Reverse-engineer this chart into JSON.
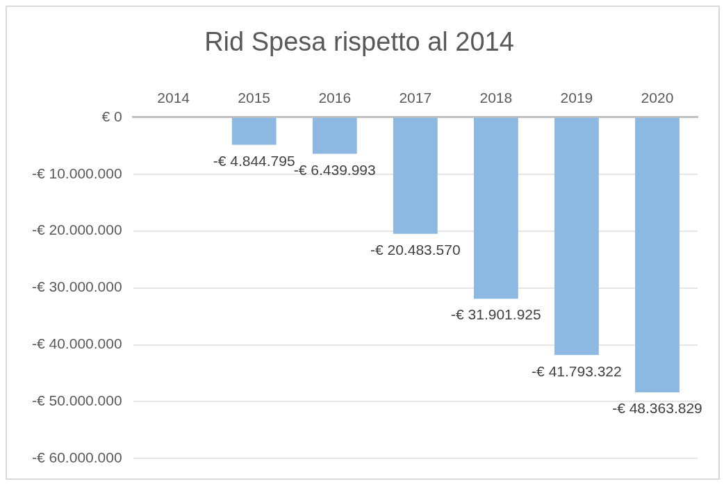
{
  "chart_data": {
    "type": "bar",
    "title": "Rid Spesa rispetto al 2014",
    "categories": [
      "2014",
      "2015",
      "2016",
      "2017",
      "2018",
      "2019",
      "2020"
    ],
    "values": [
      0,
      -4844795,
      -6439993,
      -20483570,
      -31901925,
      -41793322,
      -48363829
    ],
    "value_labels": [
      null,
      "-€ 4.844.795",
      "-€ 6.439.993",
      "-€ 20.483.570",
      "-€ 31.901.925",
      "-€ 41.793.322",
      "-€ 48.363.829"
    ],
    "color": "#8db8e2",
    "ylim": [
      -60000000,
      0
    ],
    "yticks": [
      {
        "value": 0,
        "label": "€ 0"
      },
      {
        "value": -10000000,
        "label": "-€ 10.000.000"
      },
      {
        "value": -20000000,
        "label": "-€ 20.000.000"
      },
      {
        "value": -30000000,
        "label": "-€ 30.000.000"
      },
      {
        "value": -40000000,
        "label": "-€ 40.000.000"
      },
      {
        "value": -50000000,
        "label": "-€ 50.000.000"
      },
      {
        "value": -60000000,
        "label": "-€ 60.000.000"
      }
    ],
    "grid": "y",
    "legend": false
  }
}
